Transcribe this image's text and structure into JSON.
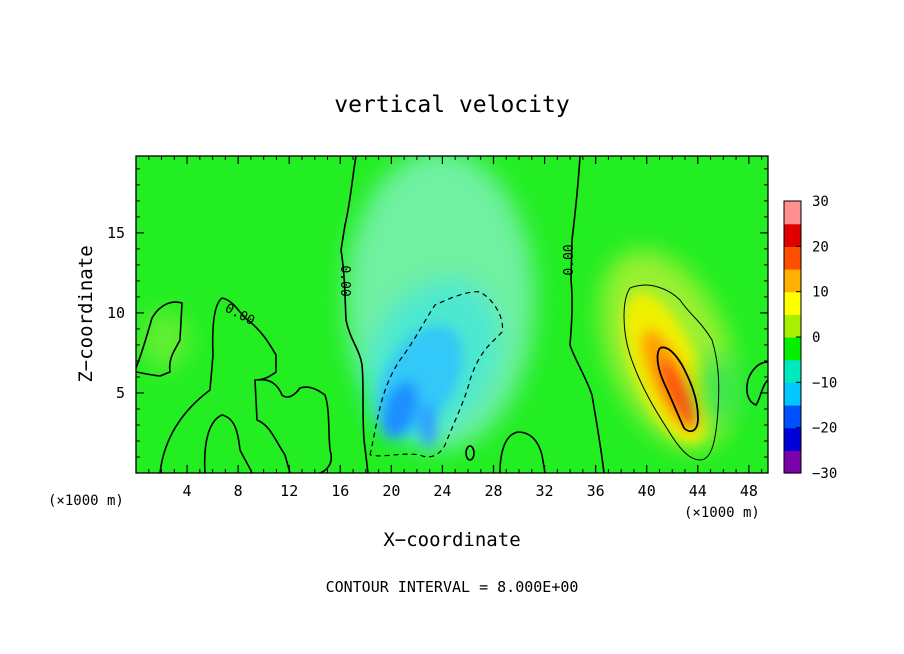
{
  "chart_data": {
    "type": "heatmap",
    "title": "vertical velocity",
    "xlabel": "X−coordinate",
    "ylabel": "Z−coordinate",
    "x_unit_left": "(×1000 m)",
    "x_unit_right": "(×1000 m)",
    "x_ticks": [
      "4",
      "8",
      "12",
      "16",
      "20",
      "24",
      "28",
      "32",
      "36",
      "40",
      "44",
      "48"
    ],
    "y_ticks": [
      "5",
      "10",
      "15"
    ],
    "xlim": [
      0,
      49.5
    ],
    "ylim": [
      0,
      19.8
    ],
    "colorbar": {
      "ticks": [
        "30",
        "20",
        "10",
        "0",
        "−10",
        "−20",
        "−30"
      ],
      "range": [
        -30,
        30
      ],
      "colors": [
        "#7a00a8",
        "#0000d8",
        "#0050ff",
        "#00c8ff",
        "#00e8c0",
        "#00f000",
        "#a8f000",
        "#ffff00",
        "#ffb000",
        "#ff5000",
        "#e00000",
        "#ff9090"
      ]
    },
    "contour_labels": [
      "0.00",
      "0.00",
      "0.00"
    ],
    "contour_interval_text": "CONTOUR INTERVAL =  8.000E+00",
    "features": [
      {
        "kind": "updraft",
        "x": 43,
        "z": 6,
        "value": 24
      },
      {
        "kind": "downdraft",
        "x": 22,
        "z": 4.5,
        "value": -12
      },
      {
        "kind": "downdraft",
        "x": 25,
        "z": 8,
        "value": -7
      }
    ]
  }
}
